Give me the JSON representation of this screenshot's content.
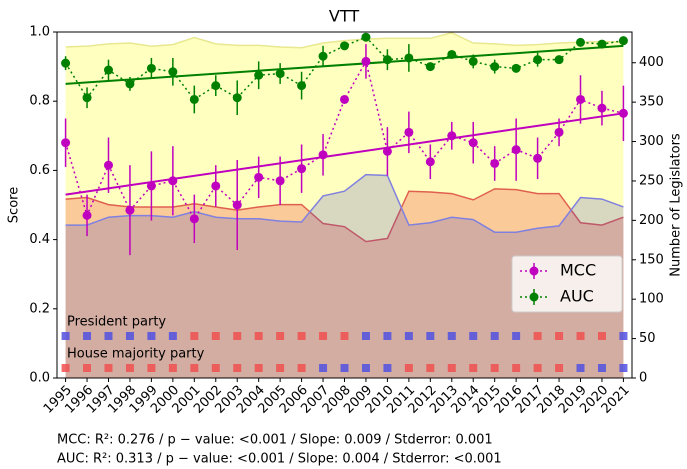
{
  "chart_data": {
    "type": "line",
    "title": "VTT",
    "ylabel": "Score",
    "y2label": "Number of Legislators",
    "x": [
      1995,
      1996,
      1997,
      1998,
      1999,
      2000,
      2001,
      2002,
      2003,
      2004,
      2005,
      2006,
      2007,
      2008,
      2009,
      2010,
      2011,
      2012,
      2013,
      2014,
      2015,
      2016,
      2017,
      2018,
      2019,
      2020,
      2021
    ],
    "xticks": [
      1995,
      1996,
      1997,
      1998,
      1999,
      2000,
      2001,
      2002,
      2003,
      2004,
      2005,
      2006,
      2007,
      2008,
      2009,
      2010,
      2011,
      2012,
      2013,
      2014,
      2015,
      2016,
      2017,
      2018,
      2019,
      2020,
      2021
    ],
    "xlim": [
      1994.6,
      2021.4
    ],
    "ylim": [
      0,
      1.0
    ],
    "yticks": [
      {
        "value": 0,
        "label": "0.0"
      },
      0.2,
      0.4,
      0.6,
      0.8,
      {
        "value": 1,
        "label": "1.0"
      }
    ],
    "y2lim": [
      0,
      439
    ],
    "y2ticks": [
      0,
      50,
      100,
      150,
      200,
      250,
      300,
      350,
      400
    ],
    "legend": "lower right",
    "series": [
      {
        "name": "MCC",
        "color": "#bf00bf",
        "values": [
          0.68,
          0.47,
          0.615,
          0.485,
          0.555,
          0.57,
          0.46,
          0.555,
          0.5,
          0.58,
          0.57,
          0.605,
          0.645,
          0.805,
          0.915,
          0.655,
          0.71,
          0.625,
          0.7,
          0.68,
          0.62,
          0.66,
          0.635,
          0.71,
          0.805,
          0.78,
          0.765
        ],
        "errors": [
          0.07,
          0.06,
          0.08,
          0.13,
          0.1,
          0.1,
          0.07,
          0.06,
          0.13,
          0.06,
          0.07,
          0.07,
          0.06,
          0,
          0.05,
          0.07,
          0.06,
          0.05,
          0.04,
          0.06,
          0.05,
          0.09,
          0.06,
          0.04,
          0.07,
          0.05,
          0.08
        ]
      },
      {
        "name": "AUC",
        "color": "#008000",
        "values": [
          0.91,
          0.81,
          0.89,
          0.85,
          0.895,
          0.885,
          0.805,
          0.845,
          0.81,
          0.875,
          0.88,
          0.845,
          0.93,
          0.96,
          0.985,
          0.92,
          0.925,
          0.9,
          0.935,
          0.915,
          0.9,
          0.895,
          0.92,
          0.92,
          0.97,
          0.965,
          0.975
        ],
        "errors": [
          0.02,
          0.03,
          0.03,
          0.02,
          0.03,
          0.04,
          0.04,
          0.03,
          0.05,
          0.04,
          0.03,
          0.04,
          0.03,
          0,
          0,
          0.03,
          0.04,
          0,
          0,
          0.02,
          0.02,
          0,
          0.02,
          0,
          0,
          0,
          0
        ]
      }
    ],
    "trends": [
      {
        "color": "#bf00bf",
        "x": [
          1995,
          2021
        ],
        "values": [
          0.53,
          0.765
        ]
      },
      {
        "color": "#008000",
        "x": [
          1995,
          2021
        ],
        "values": [
          0.85,
          0.96
        ]
      }
    ],
    "areas": [
      {
        "color": "#ffffc0",
        "edge": "#e8e890",
        "opacity": 1,
        "axis": "y2",
        "values": [
          420,
          421,
          424,
          425,
          421,
          423,
          432,
          424,
          422,
          422,
          420,
          419,
          425,
          428,
          430,
          431,
          431,
          431,
          438,
          425,
          424,
          422,
          423,
          425,
          426,
          427,
          426
        ]
      },
      {
        "color": "#f05040",
        "edge": "#e06050",
        "opacity": 0.3,
        "axis": "y2",
        "values": [
          227,
          229,
          220,
          217,
          217,
          217,
          221,
          217,
          213,
          217,
          220,
          220,
          196,
          192,
          173,
          177,
          237,
          236,
          234,
          226,
          240,
          239,
          234,
          234,
          197,
          194,
          204
        ]
      },
      {
        "color": "#3c3cc8",
        "edge": "#8080e0",
        "opacity": 0.2,
        "axis": "y2",
        "values": [
          194,
          194,
          204,
          206,
          206,
          204,
          211,
          204,
          202,
          202,
          199,
          198,
          231,
          237,
          258,
          257,
          194,
          197,
          204,
          201,
          185,
          185,
          190,
          193,
          229,
          227,
          217
        ]
      }
    ],
    "party_rows": [
      {
        "label": "President party",
        "colors": [
          "#5050e0",
          "#5050e0",
          "#5050e0",
          "#5050e0",
          "#5050e0",
          "#5050e0",
          "#f05050",
          "#f05050",
          "#f05050",
          "#f05050",
          "#f05050",
          "#f05050",
          "#f05050",
          "#f05050",
          "#5050e0",
          "#5050e0",
          "#5050e0",
          "#5050e0",
          "#5050e0",
          "#5050e0",
          "#5050e0",
          "#5050e0",
          "#f05050",
          "#f05050",
          "#f05050",
          "#f05050",
          "#5050e0"
        ]
      },
      {
        "label": "House majority party",
        "colors": [
          "#f05050",
          "#f05050",
          "#f05050",
          "#f05050",
          "#f05050",
          "#f05050",
          "#f05050",
          "#f05050",
          "#f05050",
          "#f05050",
          "#f05050",
          "#f05050",
          "#5050e0",
          "#5050e0",
          "#5050e0",
          "#5050e0",
          "#f05050",
          "#f05050",
          "#f05050",
          "#f05050",
          "#f05050",
          "#f05050",
          "#f05050",
          "#f05050",
          "#5050e0",
          "#5050e0",
          "#5050e0"
        ]
      }
    ],
    "notes": [
      "MCC: R²: 0.276 / p − value: <0.001 / Slope: 0.009 / Stderror: 0.001",
      "AUC: R²: 0.313 / p − value: <0.001 / Slope: 0.004 / Stderror: <0.001"
    ]
  }
}
